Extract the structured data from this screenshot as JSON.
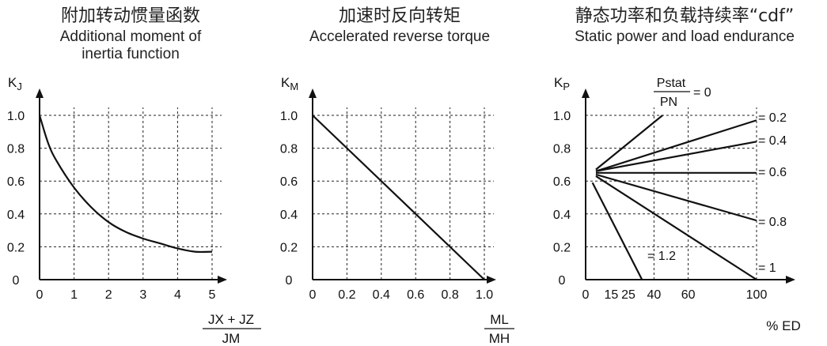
{
  "chart_data": [
    {
      "type": "line",
      "title": "附加转动惯量函数",
      "subtitle": "Additional moment of inertia function",
      "ylabel": "KJ",
      "xlabel_num": "JX + JZ",
      "xlabel_den": "JM",
      "xlim": [
        0,
        5
      ],
      "ylim": [
        0,
        1.0
      ],
      "x_ticks": [
        "0",
        "1",
        "2",
        "3",
        "4",
        "5"
      ],
      "y_ticks": [
        "0",
        "0.2",
        "0.4",
        "0.6",
        "0.8",
        "1.0"
      ],
      "grid": true,
      "series": [
        {
          "x": [
            0,
            0.25,
            0.5,
            1,
            1.5,
            2,
            2.5,
            3,
            3.5,
            4,
            4.5,
            5
          ],
          "y": [
            1.0,
            0.83,
            0.72,
            0.56,
            0.44,
            0.35,
            0.29,
            0.25,
            0.22,
            0.19,
            0.17,
            0.17
          ]
        }
      ]
    },
    {
      "type": "line",
      "title": "加速时反向转矩",
      "subtitle": "Accelerated reverse torque",
      "ylabel": "KM",
      "xlabel_num": "ML",
      "xlabel_den": "MH",
      "xlim": [
        0,
        1.0
      ],
      "ylim": [
        0,
        1.0
      ],
      "x_ticks": [
        "0",
        "0.2",
        "0.4",
        "0.6",
        "0.8",
        "1.0"
      ],
      "y_ticks": [
        "0",
        "0.2",
        "0.4",
        "0.6",
        "0.8",
        "1.0"
      ],
      "grid": true,
      "series": [
        {
          "x": [
            0,
            1.0
          ],
          "y": [
            1.0,
            0
          ]
        }
      ]
    },
    {
      "type": "line",
      "title": "静态功率和负载持续率“cdf”",
      "subtitle": "Static power and load endurance",
      "ylabel": "KP",
      "xlabel": "% ED",
      "xlim": [
        0,
        100
      ],
      "ylim": [
        0,
        1.0
      ],
      "x_ticks": [
        "0",
        "15",
        "25",
        "40",
        "60",
        "100"
      ],
      "x_tick_values": [
        0,
        15,
        25,
        40,
        60,
        100
      ],
      "y_ticks": [
        "0",
        "0.2",
        "0.4",
        "0.6",
        "0.8",
        "1.0"
      ],
      "grid": true,
      "ratio_label_num": "Pstat",
      "ratio_label_den": "PN",
      "series": [
        {
          "name": "= 0",
          "x": [
            6,
            45
          ],
          "y": [
            0.67,
            1.0
          ]
        },
        {
          "name": "= 0.2",
          "x": [
            6,
            100
          ],
          "y": [
            0.66,
            0.97
          ]
        },
        {
          "name": "= 0.4",
          "x": [
            6,
            100
          ],
          "y": [
            0.66,
            0.84
          ]
        },
        {
          "name": "= 0.6",
          "x": [
            6,
            100
          ],
          "y": [
            0.65,
            0.65
          ]
        },
        {
          "name": "= 0.8",
          "x": [
            6,
            100
          ],
          "y": [
            0.64,
            0.36
          ]
        },
        {
          "name": "= 1",
          "x": [
            6,
            100
          ],
          "y": [
            0.63,
            0.0
          ]
        },
        {
          "name": "= 1.2",
          "x": [
            4,
            33
          ],
          "y": [
            0.59,
            0.0
          ]
        }
      ]
    }
  ]
}
